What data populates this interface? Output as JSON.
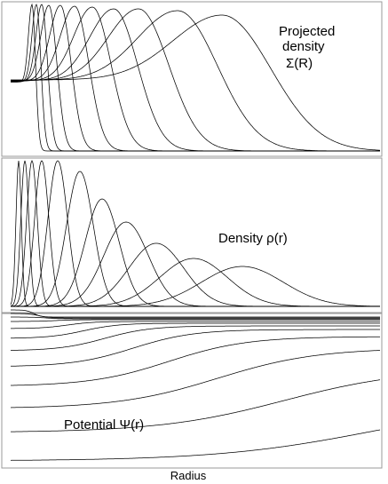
{
  "chart_data": [
    {
      "type": "line",
      "panel": "projected",
      "label_lines": [
        "Projected",
        "density",
        "Σ(R)"
      ],
      "curves": [
        {
          "peak_x": 36,
          "sigma": 4.0,
          "height": 165
        },
        {
          "peak_x": 41,
          "sigma": 5.0,
          "height": 165
        },
        {
          "peak_x": 47,
          "sigma": 6.5,
          "height": 165
        },
        {
          "peak_x": 55,
          "sigma": 9.0,
          "height": 164
        },
        {
          "peak_x": 68,
          "sigma": 12.0,
          "height": 164
        },
        {
          "peak_x": 84,
          "sigma": 16.0,
          "height": 163
        },
        {
          "peak_x": 104,
          "sigma": 21.0,
          "height": 162
        },
        {
          "peak_x": 128,
          "sigma": 27.0,
          "height": 160
        },
        {
          "peak_x": 156,
          "sigma": 34.0,
          "height": 160
        },
        {
          "peak_x": 200,
          "sigma": 45.0,
          "height": 158
        },
        {
          "peak_x": 250,
          "sigma": 55.0,
          "height": 153
        }
      ]
    },
    {
      "type": "line",
      "panel": "density",
      "label": "Density ρ(r)",
      "curves": [
        {
          "peak_x": 21,
          "sigma": 3.0,
          "height": 164
        },
        {
          "peak_x": 28,
          "sigma": 4.5,
          "height": 164
        },
        {
          "peak_x": 36,
          "sigma": 6.0,
          "height": 164
        },
        {
          "peak_x": 47,
          "sigma": 8.0,
          "height": 164
        },
        {
          "peak_x": 65,
          "sigma": 11.0,
          "height": 164
        },
        {
          "peak_x": 90,
          "sigma": 15.0,
          "height": 152
        },
        {
          "peak_x": 115,
          "sigma": 19.0,
          "height": 121
        },
        {
          "peak_x": 142,
          "sigma": 25.0,
          "height": 95
        },
        {
          "peak_x": 176,
          "sigma": 31.0,
          "height": 71
        },
        {
          "peak_x": 218,
          "sigma": 38.0,
          "height": 54
        },
        {
          "peak_x": 273,
          "sigma": 46.0,
          "height": 45
        }
      ]
    },
    {
      "type": "line",
      "panel": "potential",
      "label": "Potential Ψ(r)",
      "curves": [
        {
          "inner": 176,
          "outer": 168,
          "mid_x": 38,
          "scale": 4
        },
        {
          "inner": 172,
          "outer": 167,
          "mid_x": 44,
          "scale": 6
        },
        {
          "inner": 168,
          "outer": 166,
          "mid_x": 52,
          "scale": 8
        },
        {
          "inner": 163,
          "outer": 165,
          "mid_x": 62,
          "scale": 11
        },
        {
          "inner": 155,
          "outer": 163,
          "mid_x": 76,
          "scale": 15
        },
        {
          "inner": 144,
          "outer": 161,
          "mid_x": 94,
          "scale": 20
        },
        {
          "inner": 130,
          "outer": 158,
          "mid_x": 118,
          "scale": 26
        },
        {
          "inner": 112,
          "outer": 154,
          "mid_x": 150,
          "scale": 34
        },
        {
          "inner": 90,
          "outer": 146,
          "mid_x": 190,
          "scale": 44
        },
        {
          "inner": 65,
          "outer": 133,
          "mid_x": 245,
          "scale": 56
        },
        {
          "inner": 38,
          "outer": 110,
          "mid_x": 320,
          "scale": 70
        },
        {
          "inner": 6,
          "outer": 73,
          "mid_x": 420,
          "scale": 88
        }
      ]
    }
  ],
  "xlabel": "Radius"
}
